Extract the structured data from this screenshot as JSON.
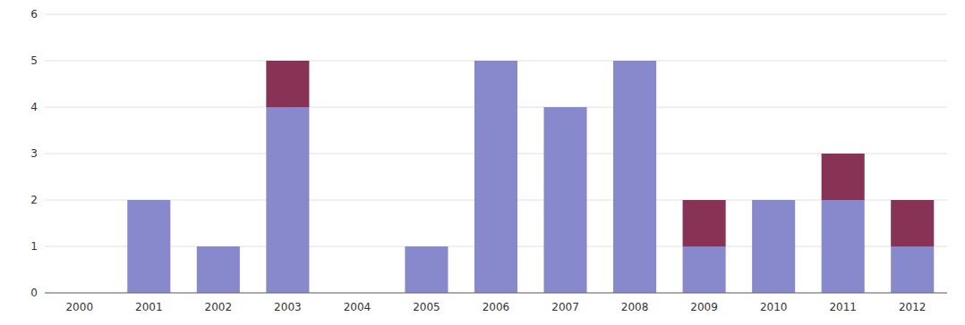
{
  "chart_data": {
    "type": "bar",
    "stacked": true,
    "grid": true,
    "categories": [
      "2000",
      "2001",
      "2002",
      "2003",
      "2004",
      "2005",
      "2006",
      "2007",
      "2008",
      "2009",
      "2010",
      "2011",
      "2012"
    ],
    "series": [
      {
        "color": "#8888CC",
        "values": [
          0,
          2,
          1,
          4,
          0,
          1,
          5,
          4,
          5,
          1,
          2,
          2,
          1
        ]
      },
      {
        "color": "#883355",
        "values": [
          0,
          0,
          0,
          1,
          0,
          0,
          0,
          0,
          0,
          1,
          0,
          1,
          1
        ]
      }
    ],
    "ylim": [
      0,
      6
    ],
    "yticks": [
      0,
      1,
      2,
      3,
      4,
      5,
      6
    ]
  }
}
